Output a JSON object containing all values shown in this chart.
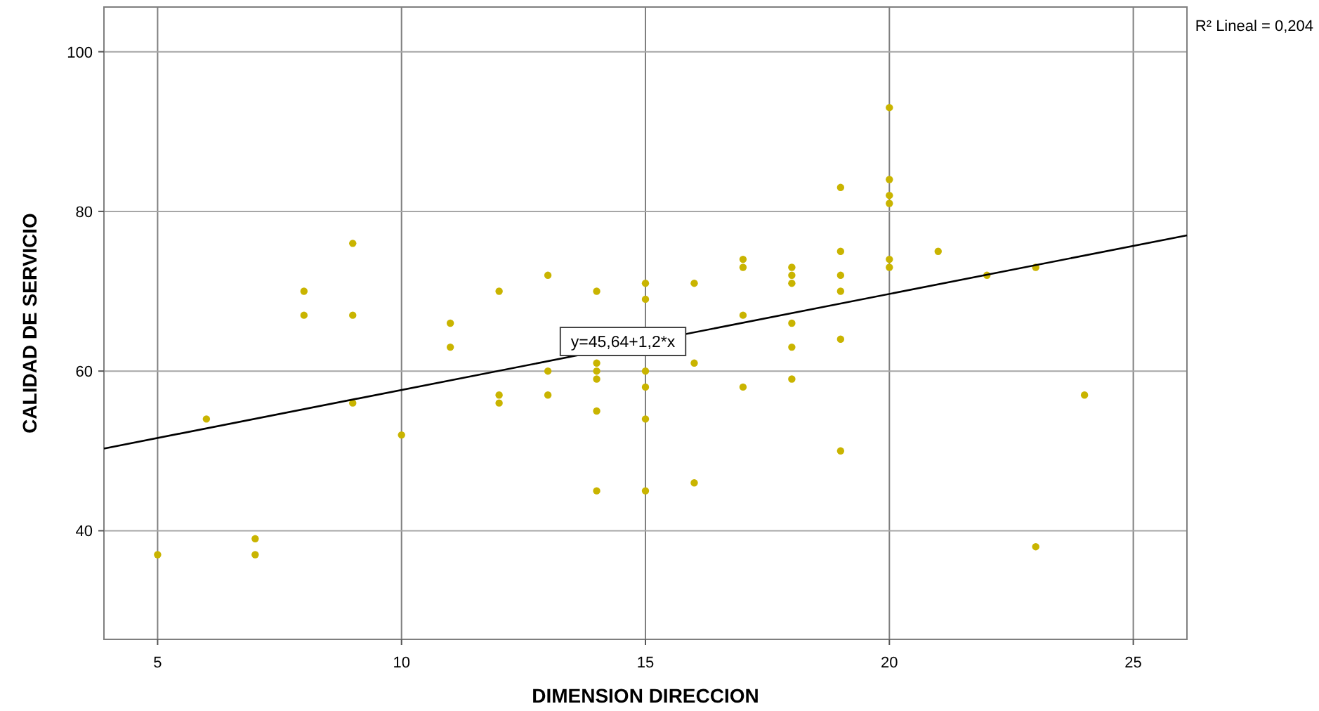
{
  "chart_data": {
    "type": "scatter",
    "xlabel": "DIMENSION DIRECCION",
    "ylabel": "CALIDAD DE SERVICIO",
    "xlim": [
      3.9,
      26.1
    ],
    "ylim": [
      26.4,
      105.6
    ],
    "xticks": [
      5,
      10,
      15,
      20,
      25
    ],
    "yticks": [
      40,
      60,
      80,
      100
    ],
    "grid": true,
    "marker": "circle",
    "series": [
      {
        "color": "#c9b400",
        "x": [
          5,
          6,
          7,
          7,
          8,
          8,
          9,
          9,
          9,
          10,
          11,
          11,
          12,
          12,
          12,
          13,
          13,
          13,
          14,
          14,
          14,
          14,
          14,
          14,
          15,
          15,
          15,
          15,
          15,
          15,
          16,
          16,
          16,
          17,
          17,
          17,
          17,
          18,
          18,
          18,
          18,
          18,
          18,
          19,
          19,
          19,
          19,
          19,
          19,
          20,
          20,
          20,
          20,
          20,
          20,
          21,
          22,
          23,
          23,
          24
        ],
        "values": [
          37,
          54,
          39,
          37,
          70,
          67,
          76,
          67,
          56,
          52,
          66,
          63,
          70,
          57,
          56,
          72,
          60,
          57,
          70,
          61,
          60,
          59,
          55,
          45,
          71,
          69,
          60,
          58,
          54,
          45,
          71,
          61,
          46,
          74,
          73,
          67,
          58,
          73,
          72,
          71,
          66,
          63,
          59,
          83,
          75,
          72,
          70,
          64,
          50,
          93,
          84,
          82,
          81,
          74,
          73,
          75,
          72,
          73,
          38,
          57
        ]
      },
      {
        "type": "line",
        "color": "#000000",
        "marker": "none",
        "x": [
          3.9,
          26.1
        ],
        "values": [
          50.3,
          77.0
        ]
      }
    ],
    "annotations": [
      "y=45,64+1,2*x",
      "R² Lineal = 0,204"
    ]
  }
}
